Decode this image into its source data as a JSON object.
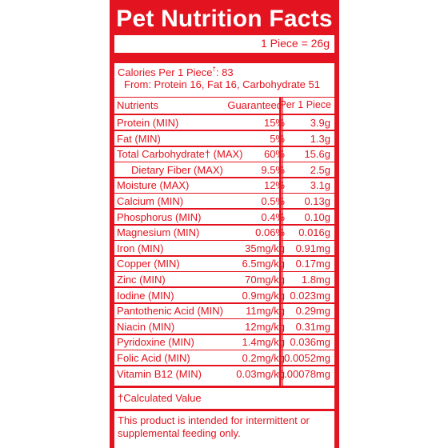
{
  "title": "Pet Nutrition Facts",
  "serving": "1 Piece = 26g",
  "calories": {
    "line1_prefix": "Calories Per 1 Piece",
    "line1_mark": "†",
    "line1_suffix": ": 83",
    "line2": "From: Protein 16, Fat 16, Carbohydrate 51"
  },
  "table": {
    "headers": {
      "nutrients": "Nutrients",
      "guaranteed": "Guaranteed",
      "per_piece": "Per 1 Piece"
    },
    "rows": [
      {
        "name": "Protein (MIN)",
        "guaranteed": "15%",
        "per_piece": "3.9g"
      },
      {
        "name": "Fat (MIN)",
        "guaranteed": "5%",
        "per_piece": "1.3g"
      },
      {
        "name": "Total Carbohydrate† (MAX)",
        "guaranteed": "60%",
        "per_piece": "15.6g"
      },
      {
        "name": "Dietary Fiber (MAX)",
        "guaranteed": "9.5%",
        "per_piece": "2.5g",
        "indent": true
      },
      {
        "name": "Moisture (MAX)",
        "guaranteed": "12%",
        "per_piece": "3.1g"
      },
      {
        "name": "Calcium (MIN)",
        "guaranteed": "0.5%",
        "per_piece": "0.13g"
      },
      {
        "name": "Phosphorus (MIN)",
        "guaranteed": "0.4%",
        "per_piece": "0.10g"
      },
      {
        "name": "Magnesium (MIN)",
        "guaranteed": "0.06%",
        "per_piece": "0.016g"
      },
      {
        "name": "Iron (MIN)",
        "guaranteed": "35mg/kg",
        "per_piece": "0.91mg"
      },
      {
        "name": "Copper (MIN)",
        "guaranteed": "6.5mg/kg",
        "per_piece": "0.17mg"
      },
      {
        "name": "Zinc (MIN)",
        "guaranteed": "70mg/kg",
        "per_piece": "1.8mg"
      },
      {
        "name": "Iodine (MIN)",
        "guaranteed": "0.9mg/kg",
        "per_piece": "0.023mg"
      },
      {
        "name": "Pantothenic Acid (MIN)",
        "guaranteed": "11mg/kg",
        "per_piece": "0.29mg"
      },
      {
        "name": "Niacin (MIN)",
        "guaranteed": "12mg/kg",
        "per_piece": "0.31mg"
      },
      {
        "name": "Pyridoxine (MIN)",
        "guaranteed": "1.4mg/kg",
        "per_piece": "0.036mg"
      },
      {
        "name": "Folic Acid (MIN)",
        "guaranteed": "0.2mg/kg",
        "per_piece": "0.0052mg"
      },
      {
        "name": "Vitamin B12 (MIN)",
        "guaranteed": "0.03mg/kg",
        "per_piece": "0.00078mg"
      }
    ]
  },
  "footnote": "†Calculated Value",
  "note": "This product is intended for intermittent or supplemental feeding only.",
  "colors": {
    "brand_red": "#e3141f",
    "background": "#ffffff"
  }
}
